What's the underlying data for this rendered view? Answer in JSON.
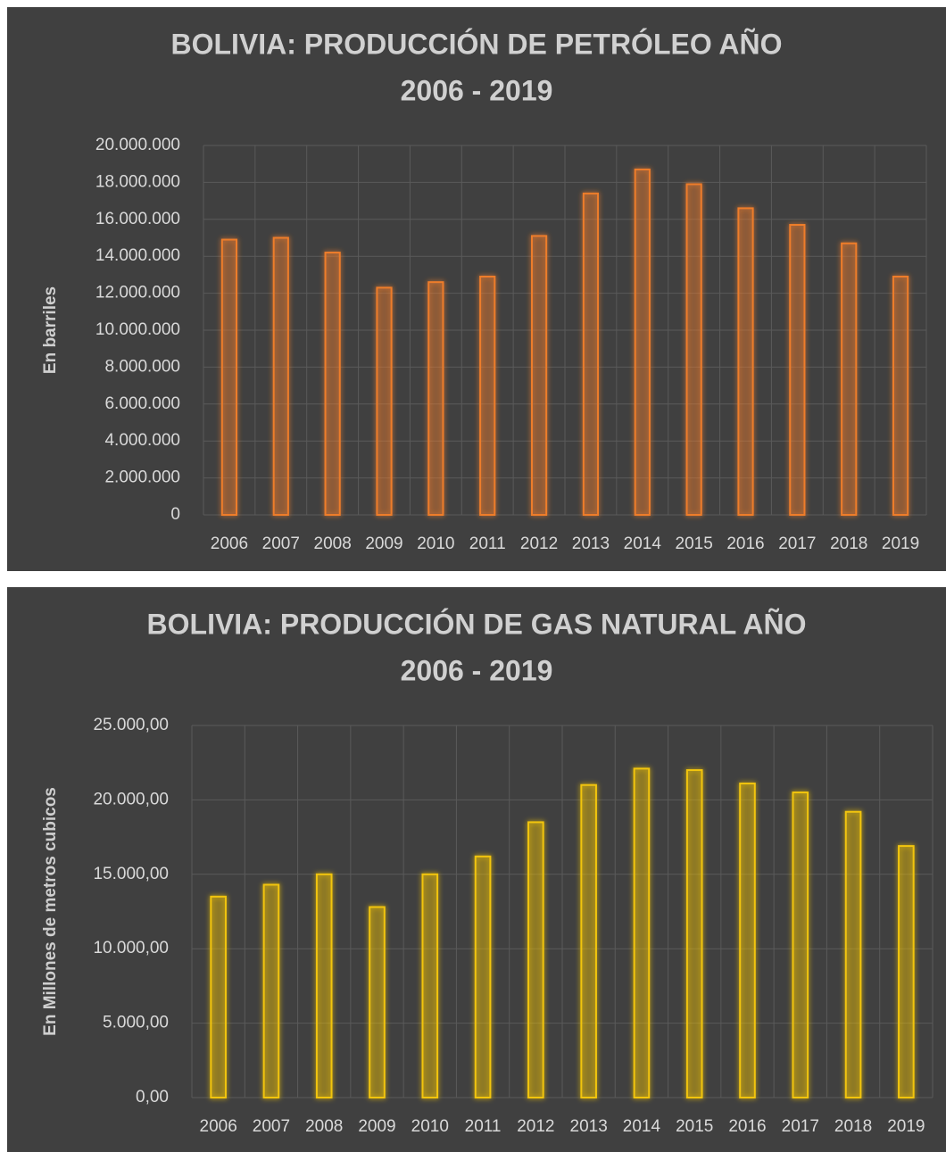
{
  "chart_data": [
    {
      "type": "bar",
      "title": [
        "BOLIVIA: PRODUCCIÓN DE PETRÓLEO AÑO",
        "2006 - 2019"
      ],
      "y_label": "En barriles",
      "categories": [
        "2006",
        "2007",
        "2008",
        "2009",
        "2010",
        "2011",
        "2012",
        "2013",
        "2014",
        "2015",
        "2016",
        "2017",
        "2018",
        "2019"
      ],
      "values": [
        14900000,
        15000000,
        14200000,
        12300000,
        12600000,
        12900000,
        15100000,
        17400000,
        18700000,
        17900000,
        16600000,
        15700000,
        14700000,
        12900000
      ],
      "color": "#ee7d2b",
      "ylim": [
        0,
        20000000
      ],
      "yticks": [
        0,
        {
          "value": 2000000,
          "label": "2.000.000"
        },
        {
          "value": 4000000,
          "label": "4.000.000"
        },
        {
          "value": 6000000,
          "label": "6.000.000"
        },
        {
          "value": 8000000,
          "label": "8.000.000"
        },
        {
          "value": 10000000,
          "label": "10.000.000"
        },
        {
          "value": 12000000,
          "label": "12.000.000"
        },
        {
          "value": 14000000,
          "label": "14.000.000"
        },
        {
          "value": 16000000,
          "label": "16.000.000"
        },
        {
          "value": 18000000,
          "label": "18.000.000"
        },
        {
          "value": 20000000,
          "label": "20.000.000"
        }
      ],
      "grid": true
    },
    {
      "type": "bar",
      "title": [
        "BOLIVIA: PRODUCCIÓN DE GAS NATURAL AÑO",
        "2006 - 2019"
      ],
      "y_label": "En Millones de metros cubicos",
      "categories": [
        "2006",
        "2007",
        "2008",
        "2009",
        "2010",
        "2011",
        "2012",
        "2013",
        "2014",
        "2015",
        "2016",
        "2017",
        "2018",
        "2019"
      ],
      "values": [
        13500,
        14300,
        15000,
        12800,
        15000,
        16200,
        18500,
        21000,
        22100,
        22000,
        21100,
        20500,
        19200,
        16900
      ],
      "color": "#f2c511",
      "ylim": [
        0,
        25000
      ],
      "yticks": [
        {
          "value": 0,
          "label": "0,00"
        },
        {
          "value": 5000,
          "label": "5.000,00"
        },
        {
          "value": 10000,
          "label": "10.000,00"
        },
        {
          "value": 15000,
          "label": "15.000,00"
        },
        {
          "value": 20000,
          "label": "20.000,00"
        },
        {
          "value": 25000,
          "label": "25.000,00"
        }
      ],
      "grid": true
    }
  ]
}
